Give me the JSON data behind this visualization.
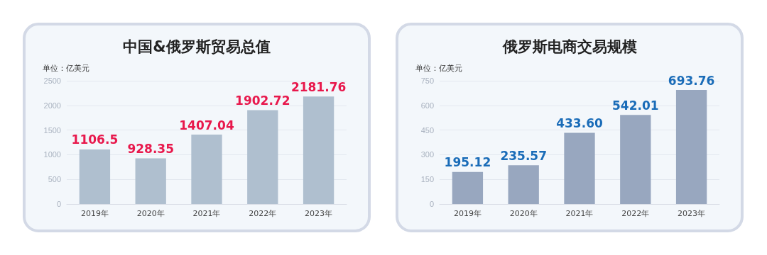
{
  "chart_data": [
    {
      "type": "bar",
      "title": "中国&俄罗斯贸易总值",
      "ylabel": "单位：亿美元",
      "categories": [
        "2019年",
        "2020年",
        "2021年",
        "2022年",
        "2023年"
      ],
      "values": [
        1106.5,
        928.35,
        1407.04,
        1902.72,
        2181.76
      ],
      "value_labels": [
        "1106.5",
        "928.35",
        "1407.04",
        "1902.72",
        "2181.76"
      ],
      "color": "#afbfcf",
      "ylim": [
        0,
        2500
      ],
      "yticks": [
        0,
        500,
        1000,
        1500,
        2000,
        2500
      ],
      "grid": "y"
    },
    {
      "type": "bar",
      "title": "俄罗斯电商交易规模",
      "ylabel": "单位：亿美元",
      "categories": [
        "2019年",
        "2020年",
        "2021年",
        "2022年",
        "2023年"
      ],
      "values": [
        195.12,
        235.57,
        433.6,
        542.01,
        693.76
      ],
      "value_labels": [
        "195.12",
        "235.57",
        "433.60",
        "542.01",
        "693.76"
      ],
      "color": "#98a7bf",
      "ylim": [
        0,
        750
      ],
      "yticks": [
        0,
        150,
        300,
        450,
        600,
        750
      ],
      "grid": "y"
    }
  ]
}
